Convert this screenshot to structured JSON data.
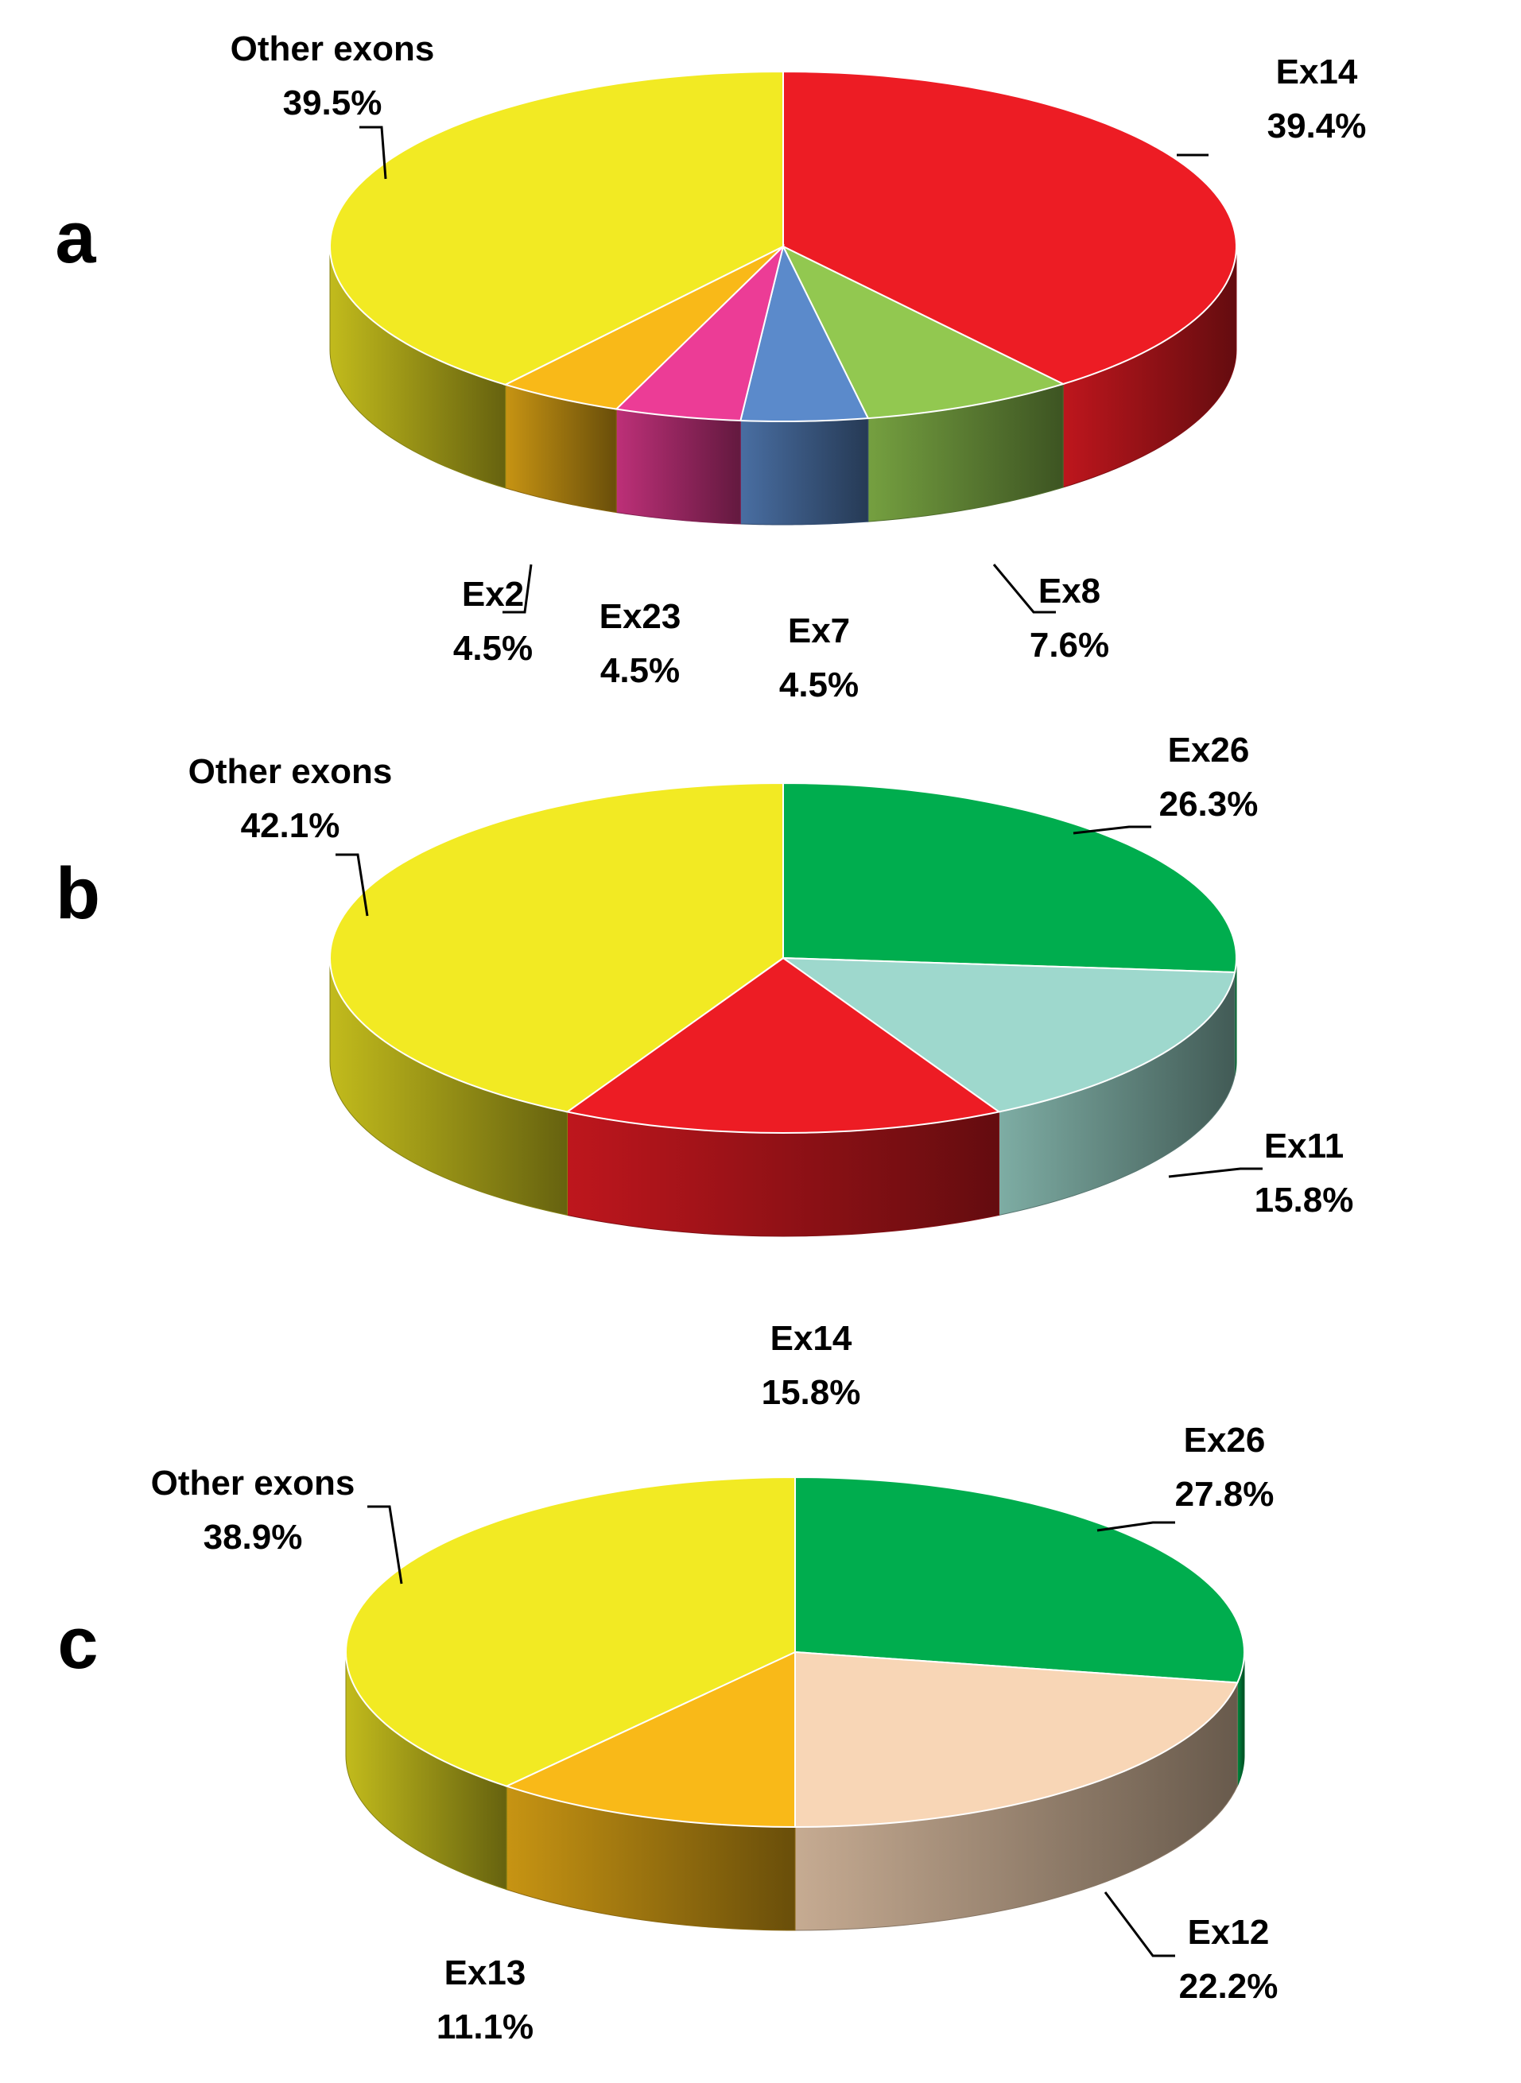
{
  "chart_data": [
    {
      "type": "pie",
      "panel": "a",
      "slices": [
        {
          "label": "Ex14",
          "value": 39.4,
          "display": "39.4%",
          "color": "#ED1C24"
        },
        {
          "label": "Ex8",
          "value": 7.6,
          "display": "7.6%",
          "color": "#92C850"
        },
        {
          "label": "Ex7",
          "value": 4.5,
          "display": "4.5%",
          "color": "#5B8ACB"
        },
        {
          "label": "Ex23",
          "value": 4.5,
          "display": "4.5%",
          "color": "#EC3C96"
        },
        {
          "label": "Ex2",
          "value": 4.5,
          "display": "4.5%",
          "color": "#F9B918"
        },
        {
          "label": "Other exons",
          "value": 39.5,
          "display": "39.5%",
          "color": "#F2EA23"
        }
      ]
    },
    {
      "type": "pie",
      "panel": "b",
      "slices": [
        {
          "label": "Ex26",
          "value": 26.3,
          "display": "26.3%",
          "color": "#00AD4E"
        },
        {
          "label": "Ex11",
          "value": 15.8,
          "display": "15.8%",
          "color": "#9ED8CD"
        },
        {
          "label": "Ex14",
          "value": 15.8,
          "display": "15.8%",
          "color": "#ED1C24"
        },
        {
          "label": "Other exons",
          "value": 42.1,
          "display": "42.1%",
          "color": "#F2EA23"
        }
      ]
    },
    {
      "type": "pie",
      "panel": "c",
      "slices": [
        {
          "label": "Ex26",
          "value": 27.8,
          "display": "27.8%",
          "color": "#00AD4E"
        },
        {
          "label": "Ex12",
          "value": 22.2,
          "display": "22.2%",
          "color": "#F8D6B6"
        },
        {
          "label": "Ex13",
          "value": 11.1,
          "display": "11.1%",
          "color": "#F9B918"
        },
        {
          "label": "Other exons",
          "value": 38.9,
          "display": "38.9%",
          "color": "#F2EA23"
        }
      ]
    }
  ]
}
